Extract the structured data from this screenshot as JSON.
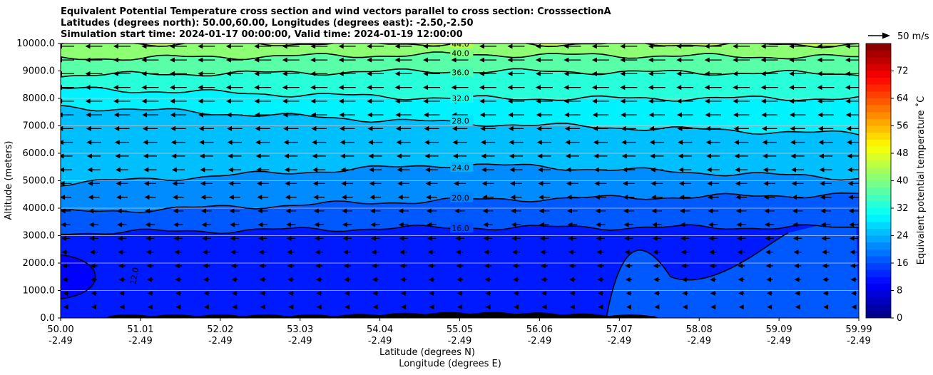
{
  "title_lines": [
    "Equivalent Potential Temperature cross section and wind vectors parallel to cross section: CrosssectionA",
    "Latitudes (degrees north): 50.00,60.00, Longitudes (degrees east): -2.50,-2.50",
    "Simulation start time: 2024-01-17 00:00:00, Valid time: 2024-01-19 12:00:00"
  ],
  "chart_data": {
    "type": "heatmap",
    "subtype": "filled contour cross section with contour lines and wind vectors",
    "xlabel": "Latitude (degrees N)",
    "xlabel2": "Longitude (degrees E)",
    "ylabel": "Altitude (meters)",
    "ylim": [
      0,
      10000
    ],
    "y_ticks": [
      "0.0",
      "1000.0",
      "2000.0",
      "3000.0",
      "4000.0",
      "5000.0",
      "6000.0",
      "7000.0",
      "8000.0",
      "9000.0",
      "10000.0"
    ],
    "y_tick_values": [
      0,
      1000,
      2000,
      3000,
      4000,
      5000,
      6000,
      7000,
      8000,
      9000,
      10000
    ],
    "x_ticks": [
      {
        "lat": "50.00",
        "lon": "-2.49"
      },
      {
        "lat": "51.01",
        "lon": "-2.49"
      },
      {
        "lat": "52.02",
        "lon": "-2.49"
      },
      {
        "lat": "53.03",
        "lon": "-2.49"
      },
      {
        "lat": "54.04",
        "lon": "-2.49"
      },
      {
        "lat": "55.05",
        "lon": "-2.49"
      },
      {
        "lat": "56.06",
        "lon": "-2.49"
      },
      {
        "lat": "57.07",
        "lon": "-2.49"
      },
      {
        "lat": "58.08",
        "lon": "-2.49"
      },
      {
        "lat": "59.09",
        "lon": "-2.49"
      },
      {
        "lat": "59.99",
        "lon": "-2.49"
      }
    ],
    "grid": "horizontal",
    "colorbar": {
      "label": "Equivalent potential temperature ˚C",
      "ticks": [
        "0",
        "8",
        "16",
        "24",
        "32",
        "40",
        "48",
        "56",
        "64",
        "72"
      ],
      "tick_values": [
        0,
        8,
        16,
        24,
        32,
        40,
        48,
        56,
        64,
        72
      ],
      "range": [
        0,
        80
      ],
      "colormap": "jet"
    },
    "contour_labels": [
      "12.0",
      "16.0",
      "20.0",
      "24.0",
      "28.0",
      "32.0",
      "36.0",
      "40.0",
      "44.0"
    ],
    "contour_levels": [
      {
        "value": 16,
        "altitude_left": 3100,
        "altitude_mid": 3300,
        "altitude_right": 3300
      },
      {
        "value": 20,
        "altitude_left": 3850,
        "altitude_mid": 4300,
        "altitude_right": 4500
      },
      {
        "value": 24,
        "altitude_left": 4900,
        "altitude_mid": 5600,
        "altitude_right": 5100
      },
      {
        "value": 28,
        "altitude_left": 7700,
        "altitude_mid": 7100,
        "altitude_right": 6700
      },
      {
        "value": 32,
        "altitude_left": 8350,
        "altitude_mid": 8000,
        "altitude_right": 8000
      },
      {
        "value": 36,
        "altitude_left": 8850,
        "altitude_mid": 9000,
        "altitude_right": 8900
      },
      {
        "value": 40,
        "altitude_left": 9450,
        "altitude_mid": 9600,
        "altitude_right": 9500
      },
      {
        "value": 44,
        "altitude_left": 10000,
        "altitude_mid": 10000,
        "altitude_right": 9950
      }
    ],
    "wind": {
      "direction": "left (southward, parallel to cross section)",
      "quiver_key": "50 m/s",
      "speed_ms": 50
    },
    "colors": {
      "terrain": "#000000",
      "contour_line": "#000000",
      "gridline": "#c8c8c8"
    }
  }
}
